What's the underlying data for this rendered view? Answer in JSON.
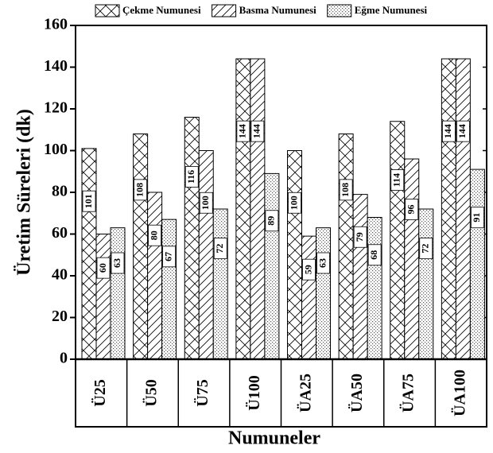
{
  "chart_data": {
    "type": "bar",
    "x_label": "Numuneler",
    "y_label": "Üretim Süreleri (dk)",
    "categories": [
      "Ü25",
      "Ü50",
      "Ü75",
      "Ü100",
      "ÜA25",
      "ÜA50",
      "ÜA75",
      "ÜA100"
    ],
    "series": [
      {
        "name": "Çekme Numunesi",
        "pattern": "crosshatch",
        "values": [
          101,
          108,
          116,
          144,
          100,
          108,
          114,
          144
        ]
      },
      {
        "name": "Basma Numunesi",
        "pattern": "diagonal",
        "values": [
          60,
          80,
          100,
          144,
          59,
          79,
          96,
          144
        ]
      },
      {
        "name": "Eğme Numunesi",
        "pattern": "dots",
        "values": [
          63,
          67,
          72,
          89,
          63,
          68,
          72,
          91
        ]
      }
    ],
    "ylim": [
      0,
      160
    ],
    "yticks": [
      0,
      20,
      40,
      60,
      80,
      100,
      120,
      140,
      160
    ],
    "legend": "top"
  }
}
